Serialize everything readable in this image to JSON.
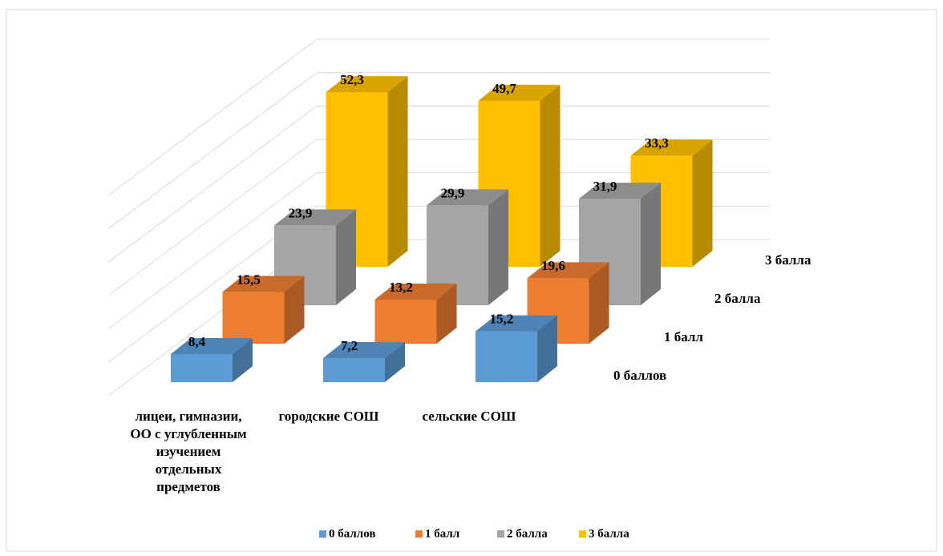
{
  "chart_data": {
    "type": "bar3d",
    "categories": [
      "лицеи, гимназии,\nОО с углубленным\nизучением\nотдельных\nпредметов",
      "городские СОШ",
      "сельские СОШ"
    ],
    "series": [
      {
        "name": "0 баллов",
        "color": "#5b9bd5",
        "values": [
          8.4,
          7.2,
          15.2
        ],
        "value_labels": [
          "8,4",
          "7,2",
          "15,2"
        ]
      },
      {
        "name": "1 балл",
        "color": "#ed7d31",
        "values": [
          15.5,
          13.2,
          19.6
        ],
        "value_labels": [
          "15,5",
          "13,2",
          "19,6"
        ]
      },
      {
        "name": "2 балла",
        "color": "#a5a5a5",
        "values": [
          23.9,
          29.9,
          31.9
        ],
        "value_labels": [
          "23,9",
          "29,9",
          "31,9"
        ]
      },
      {
        "name": "3 балла",
        "color": "#ffc000",
        "values": [
          52.3,
          49.7,
          33.3
        ],
        "value_labels": [
          "52,3",
          "49,7",
          "33,3"
        ]
      }
    ],
    "ylim": [
      0,
      60
    ],
    "yticks": [
      0,
      10,
      20,
      30,
      40,
      50,
      60
    ],
    "grid": true,
    "legend": "bottom"
  }
}
